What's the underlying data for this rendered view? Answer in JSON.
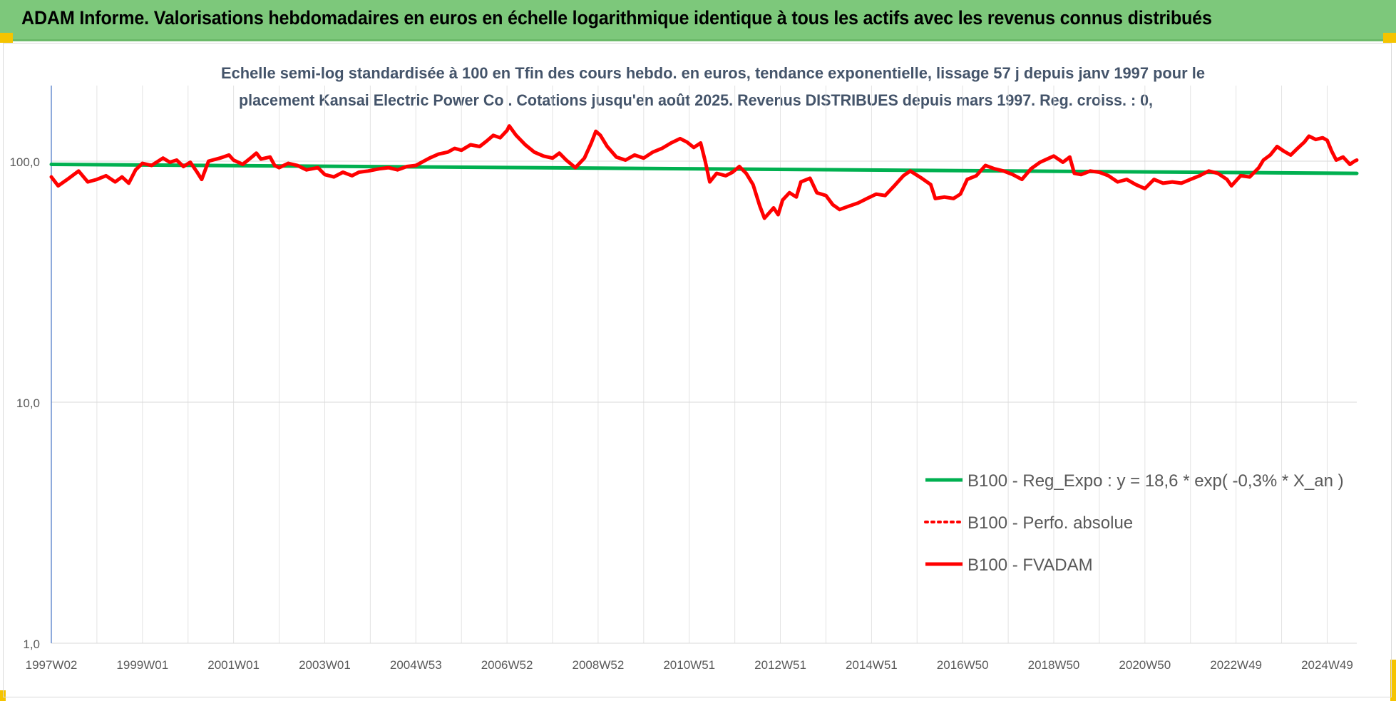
{
  "header": {
    "title": "ADAM Informe. Valorisations hebdomadaires en euros en échelle logarithmique identique à tous les actifs avec les revenus connus distribués"
  },
  "colors": {
    "header_bg": "#7dc87b",
    "corner_accent": "#f5c400",
    "reg_expo": "#00b050",
    "fvadam": "#ff0000",
    "perfo": "#ff0000",
    "axis_text": "#595959",
    "subtitle": "#44546a"
  },
  "chart_data": {
    "type": "line",
    "title_lines": [
      "Echelle semi-log standardisée à 100 en Tfin des cours hebdo. en euros, tendance exponentielle, lissage 57 j depuis janv 1997 pour le",
      "placement Kansai Electric Power Co . Cotations jusqu'en août 2025. Revenus DISTRIBUES depuis mars 1997. Reg. croiss. : 0,"
    ],
    "yscale": "log",
    "ylim": [
      1,
      200
    ],
    "y_ticks": [
      {
        "value": 1,
        "label": "1,0"
      },
      {
        "value": 10,
        "label": "10,0"
      },
      {
        "value": 100,
        "label": "100,0"
      }
    ],
    "xlim": [
      1997.0,
      2025.65
    ],
    "x_ticks": [
      {
        "year": 1997.0,
        "label": "1997W02"
      },
      {
        "year": 1999.0,
        "label": "1999W01"
      },
      {
        "year": 2001.0,
        "label": "2001W01"
      },
      {
        "year": 2003.0,
        "label": "2003W01"
      },
      {
        "year": 2005.0,
        "label": "2004W53"
      },
      {
        "year": 2007.0,
        "label": "2006W52"
      },
      {
        "year": 2009.0,
        "label": "2008W52"
      },
      {
        "year": 2011.0,
        "label": "2010W51"
      },
      {
        "year": 2013.0,
        "label": "2012W51"
      },
      {
        "year": 2015.0,
        "label": "2014W51"
      },
      {
        "year": 2017.0,
        "label": "2016W50"
      },
      {
        "year": 2019.0,
        "label": "2018W50"
      },
      {
        "year": 2021.0,
        "label": "2020W50"
      },
      {
        "year": 2023.0,
        "label": "2022W49"
      },
      {
        "year": 2025.0,
        "label": "2024W49"
      }
    ],
    "grid": "vertical",
    "legend_position": "right",
    "series": [
      {
        "name": "B100 - Reg_Expo : y = 18,6 * exp( -0,3% *  X_an )",
        "style": "solid-thick",
        "color": "#00b050",
        "points": [
          [
            1997.0,
            97
          ],
          [
            2025.65,
            89
          ]
        ]
      },
      {
        "name": "B100 - Perfo. absolue",
        "style": "dotted",
        "color": "#ff0000",
        "points": []
      },
      {
        "name": "B100 - FVADAM",
        "style": "solid-thick",
        "color": "#ff0000",
        "points": [
          [
            1997.0,
            86
          ],
          [
            1997.15,
            79
          ],
          [
            1997.35,
            84
          ],
          [
            1997.6,
            91
          ],
          [
            1997.8,
            82
          ],
          [
            1998.0,
            84
          ],
          [
            1998.2,
            87
          ],
          [
            1998.4,
            82
          ],
          [
            1998.55,
            86
          ],
          [
            1998.7,
            81
          ],
          [
            1998.85,
            92
          ],
          [
            1999.0,
            98
          ],
          [
            1999.2,
            96
          ],
          [
            1999.45,
            103
          ],
          [
            1999.6,
            99
          ],
          [
            1999.75,
            101
          ],
          [
            1999.9,
            95
          ],
          [
            2000.05,
            99
          ],
          [
            2000.2,
            90
          ],
          [
            2000.3,
            84
          ],
          [
            2000.45,
            100
          ],
          [
            2000.7,
            103
          ],
          [
            2000.9,
            106
          ],
          [
            2001.0,
            101
          ],
          [
            2001.2,
            97
          ],
          [
            2001.4,
            104
          ],
          [
            2001.5,
            108
          ],
          [
            2001.6,
            102
          ],
          [
            2001.8,
            104
          ],
          [
            2001.9,
            96
          ],
          [
            2002.0,
            94
          ],
          [
            2002.2,
            98
          ],
          [
            2002.4,
            96
          ],
          [
            2002.6,
            92
          ],
          [
            2002.85,
            94
          ],
          [
            2003.0,
            88
          ],
          [
            2003.2,
            86
          ],
          [
            2003.4,
            90
          ],
          [
            2003.6,
            87
          ],
          [
            2003.75,
            90
          ],
          [
            2003.95,
            91
          ],
          [
            2004.2,
            93
          ],
          [
            2004.4,
            94
          ],
          [
            2004.6,
            92
          ],
          [
            2004.8,
            95
          ],
          [
            2005.0,
            96
          ],
          [
            2005.3,
            103
          ],
          [
            2005.5,
            107
          ],
          [
            2005.7,
            109
          ],
          [
            2005.85,
            113
          ],
          [
            2006.0,
            111
          ],
          [
            2006.2,
            117
          ],
          [
            2006.4,
            115
          ],
          [
            2006.55,
            121
          ],
          [
            2006.7,
            128
          ],
          [
            2006.85,
            125
          ],
          [
            2007.0,
            134
          ],
          [
            2007.05,
            140
          ],
          [
            2007.2,
            128
          ],
          [
            2007.4,
            117
          ],
          [
            2007.6,
            109
          ],
          [
            2007.8,
            105
          ],
          [
            2008.0,
            103
          ],
          [
            2008.15,
            108
          ],
          [
            2008.3,
            101
          ],
          [
            2008.5,
            94
          ],
          [
            2008.7,
            103
          ],
          [
            2008.85,
            119
          ],
          [
            2008.95,
            133
          ],
          [
            2009.05,
            128
          ],
          [
            2009.2,
            115
          ],
          [
            2009.4,
            104
          ],
          [
            2009.6,
            101
          ],
          [
            2009.8,
            106
          ],
          [
            2010.0,
            103
          ],
          [
            2010.2,
            109
          ],
          [
            2010.4,
            113
          ],
          [
            2010.6,
            119
          ],
          [
            2010.8,
            124
          ],
          [
            2010.95,
            120
          ],
          [
            2011.1,
            114
          ],
          [
            2011.25,
            119
          ],
          [
            2011.35,
            100
          ],
          [
            2011.45,
            82
          ],
          [
            2011.6,
            89
          ],
          [
            2011.8,
            87
          ],
          [
            2011.95,
            90
          ],
          [
            2012.1,
            95
          ],
          [
            2012.25,
            89
          ],
          [
            2012.4,
            80
          ],
          [
            2012.55,
            65
          ],
          [
            2012.65,
            58
          ],
          [
            2012.85,
            64
          ],
          [
            2012.95,
            60
          ],
          [
            2013.05,
            69
          ],
          [
            2013.2,
            74
          ],
          [
            2013.35,
            71
          ],
          [
            2013.45,
            82
          ],
          [
            2013.65,
            85
          ],
          [
            2013.8,
            74
          ],
          [
            2014.0,
            72
          ],
          [
            2014.15,
            66
          ],
          [
            2014.3,
            63
          ],
          [
            2014.5,
            65
          ],
          [
            2014.7,
            67
          ],
          [
            2014.9,
            70
          ],
          [
            2015.1,
            73
          ],
          [
            2015.3,
            72
          ],
          [
            2015.5,
            79
          ],
          [
            2015.7,
            87
          ],
          [
            2015.85,
            91
          ],
          [
            2016.1,
            85
          ],
          [
            2016.3,
            80
          ],
          [
            2016.4,
            70
          ],
          [
            2016.6,
            71
          ],
          [
            2016.8,
            70
          ],
          [
            2016.95,
            73
          ],
          [
            2017.1,
            84
          ],
          [
            2017.3,
            87
          ],
          [
            2017.5,
            96
          ],
          [
            2017.7,
            93
          ],
          [
            2017.9,
            91
          ],
          [
            2018.1,
            88
          ],
          [
            2018.3,
            84
          ],
          [
            2018.5,
            93
          ],
          [
            2018.7,
            99
          ],
          [
            2018.9,
            103
          ],
          [
            2019.0,
            105
          ],
          [
            2019.2,
            99
          ],
          [
            2019.35,
            104
          ],
          [
            2019.45,
            89
          ],
          [
            2019.6,
            88
          ],
          [
            2019.8,
            91
          ],
          [
            2020.0,
            90
          ],
          [
            2020.2,
            87
          ],
          [
            2020.4,
            82
          ],
          [
            2020.6,
            84
          ],
          [
            2020.8,
            80
          ],
          [
            2021.0,
            77
          ],
          [
            2021.2,
            84
          ],
          [
            2021.4,
            81
          ],
          [
            2021.6,
            82
          ],
          [
            2021.8,
            81
          ],
          [
            2022.0,
            84
          ],
          [
            2022.2,
            87
          ],
          [
            2022.4,
            91
          ],
          [
            2022.6,
            89
          ],
          [
            2022.8,
            84
          ],
          [
            2022.9,
            79
          ],
          [
            2023.1,
            87
          ],
          [
            2023.3,
            86
          ],
          [
            2023.5,
            94
          ],
          [
            2023.6,
            101
          ],
          [
            2023.75,
            106
          ],
          [
            2023.9,
            115
          ],
          [
            2024.05,
            110
          ],
          [
            2024.2,
            106
          ],
          [
            2024.35,
            113
          ],
          [
            2024.5,
            120
          ],
          [
            2024.6,
            127
          ],
          [
            2024.75,
            123
          ],
          [
            2024.9,
            125
          ],
          [
            2025.0,
            122
          ],
          [
            2025.1,
            110
          ],
          [
            2025.2,
            101
          ],
          [
            2025.35,
            104
          ],
          [
            2025.5,
            97
          ],
          [
            2025.6,
            100
          ],
          [
            2025.65,
            101
          ]
        ]
      }
    ]
  }
}
